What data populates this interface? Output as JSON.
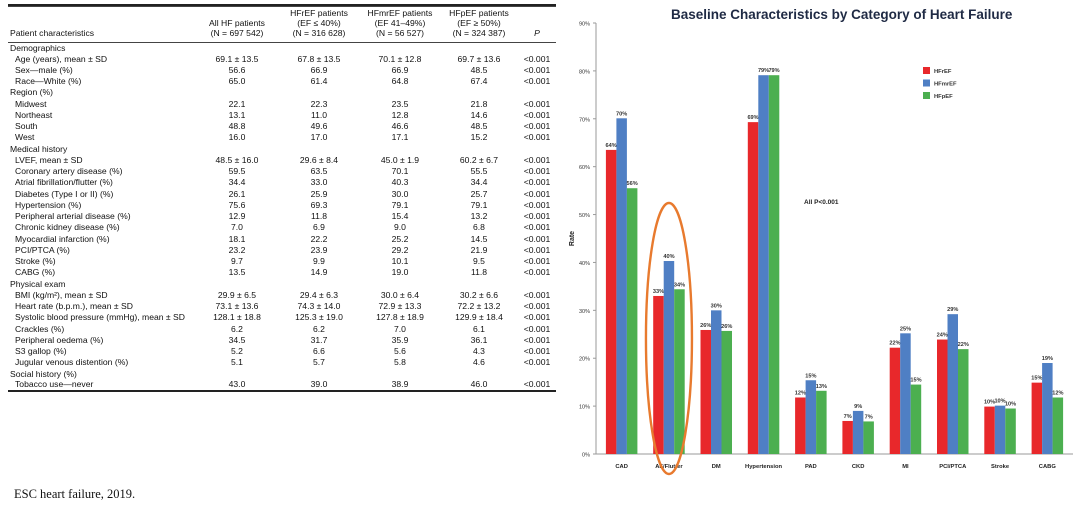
{
  "table": {
    "headers": [
      "Patient characteristics",
      "All HF patients\n(N = 697 542)",
      "HFrEF patients\n(EF ≤ 40%)\n(N = 316 628)",
      "HFmrEF patients\n(EF 41–49%)\n(N = 56 527)",
      "HFpEF patients\n(EF ≥ 50%)\n(N = 324 387)",
      "P"
    ],
    "rows": [
      {
        "type": "section",
        "label": "Demographics"
      },
      {
        "type": "row",
        "label": "Age (years), mean ± SD",
        "all": "69.1 ± 13.5",
        "hfref": "67.8 ± 13.5",
        "hfmref": "70.1 ± 12.8",
        "hfpef": "69.7 ± 13.6",
        "p": "<0.001"
      },
      {
        "type": "row",
        "label": "Sex—male (%)",
        "all": "56.6",
        "hfref": "66.9",
        "hfmref": "66.9",
        "hfpef": "48.5",
        "p": "<0.001"
      },
      {
        "type": "row",
        "label": "Race—White (%)",
        "all": "65.0",
        "hfref": "61.4",
        "hfmref": "64.8",
        "hfpef": "67.4",
        "p": "<0.001"
      },
      {
        "type": "section",
        "label": "Region (%)"
      },
      {
        "type": "row",
        "label": "Midwest",
        "all": "22.1",
        "hfref": "22.3",
        "hfmref": "23.5",
        "hfpef": "21.8",
        "p": "<0.001"
      },
      {
        "type": "row",
        "label": "Northeast",
        "all": "13.1",
        "hfref": "11.0",
        "hfmref": "12.8",
        "hfpef": "14.6",
        "p": "<0.001"
      },
      {
        "type": "row",
        "label": "South",
        "all": "48.8",
        "hfref": "49.6",
        "hfmref": "46.6",
        "hfpef": "48.5",
        "p": "<0.001"
      },
      {
        "type": "row",
        "label": "West",
        "all": "16.0",
        "hfref": "17.0",
        "hfmref": "17.1",
        "hfpef": "15.2",
        "p": "<0.001"
      },
      {
        "type": "section",
        "label": "Medical history"
      },
      {
        "type": "row",
        "label": "LVEF, mean ± SD",
        "all": "48.5 ± 16.0",
        "hfref": "29.6 ± 8.4",
        "hfmref": "45.0 ± 1.9",
        "hfpef": "60.2 ± 6.7",
        "p": "<0.001"
      },
      {
        "type": "row",
        "label": "Coronary artery disease (%)",
        "all": "59.5",
        "hfref": "63.5",
        "hfmref": "70.1",
        "hfpef": "55.5",
        "p": "<0.001"
      },
      {
        "type": "row",
        "label": "Atrial fibrillation/flutter (%)",
        "all": "34.4",
        "hfref": "33.0",
        "hfmref": "40.3",
        "hfpef": "34.4",
        "p": "<0.001"
      },
      {
        "type": "row",
        "label": "Diabetes (Type I or II) (%)",
        "all": "26.1",
        "hfref": "25.9",
        "hfmref": "30.0",
        "hfpef": "25.7",
        "p": "<0.001"
      },
      {
        "type": "row",
        "label": "Hypertension (%)",
        "all": "75.6",
        "hfref": "69.3",
        "hfmref": "79.1",
        "hfpef": "79.1",
        "p": "<0.001"
      },
      {
        "type": "row",
        "label": "Peripheral arterial disease (%)",
        "all": "12.9",
        "hfref": "11.8",
        "hfmref": "15.4",
        "hfpef": "13.2",
        "p": "<0.001"
      },
      {
        "type": "row",
        "label": "Chronic kidney disease (%)",
        "all": "7.0",
        "hfref": "6.9",
        "hfmref": "9.0",
        "hfpef": "6.8",
        "p": "<0.001"
      },
      {
        "type": "row",
        "label": "Myocardial infarction (%)",
        "all": "18.1",
        "hfref": "22.2",
        "hfmref": "25.2",
        "hfpef": "14.5",
        "p": "<0.001"
      },
      {
        "type": "row",
        "label": "PCI/PTCA (%)",
        "all": "23.2",
        "hfref": "23.9",
        "hfmref": "29.2",
        "hfpef": "21.9",
        "p": "<0.001"
      },
      {
        "type": "row",
        "label": "Stroke (%)",
        "all": "9.7",
        "hfref": "9.9",
        "hfmref": "10.1",
        "hfpef": "9.5",
        "p": "<0.001"
      },
      {
        "type": "row",
        "label": "CABG (%)",
        "all": "13.5",
        "hfref": "14.9",
        "hfmref": "19.0",
        "hfpef": "11.8",
        "p": "<0.001"
      },
      {
        "type": "section",
        "label": "Physical exam"
      },
      {
        "type": "row",
        "label": "BMI (kg/m²), mean ± SD",
        "all": "29.9 ± 6.5",
        "hfref": "29.4 ± 6.3",
        "hfmref": "30.0 ± 6.4",
        "hfpef": "30.2 ± 6.6",
        "p": "<0.001"
      },
      {
        "type": "row",
        "label": "Heart rate (b.p.m.), mean ± SD",
        "all": "73.1 ± 13.6",
        "hfref": "74.3 ± 14.0",
        "hfmref": "72.9 ± 13.3",
        "hfpef": "72.2 ± 13.2",
        "p": "<0.001"
      },
      {
        "type": "row",
        "label": "Systolic blood pressure (mmHg), mean ± SD",
        "all": "128.1 ± 18.8",
        "hfref": "125.3 ± 19.0",
        "hfmref": "127.8 ± 18.9",
        "hfpef": "129.9 ± 18.4",
        "p": "<0.001"
      },
      {
        "type": "row",
        "label": "Crackles (%)",
        "all": "6.2",
        "hfref": "6.2",
        "hfmref": "7.0",
        "hfpef": "6.1",
        "p": "<0.001"
      },
      {
        "type": "row",
        "label": "Peripheral oedema (%)",
        "all": "34.5",
        "hfref": "31.7",
        "hfmref": "35.9",
        "hfpef": "36.1",
        "p": "<0.001"
      },
      {
        "type": "row",
        "label": "S3 gallop (%)",
        "all": "5.2",
        "hfref": "6.6",
        "hfmref": "5.6",
        "hfpef": "4.3",
        "p": "<0.001"
      },
      {
        "type": "row",
        "label": "Jugular venous distention (%)",
        "all": "5.1",
        "hfref": "5.7",
        "hfmref": "5.8",
        "hfpef": "4.6",
        "p": "<0.001"
      },
      {
        "type": "section",
        "label": "Social history (%)"
      },
      {
        "type": "row",
        "label": "Tobacco use—never",
        "all": "43.0",
        "hfref": "39.0",
        "hfmref": "38.9",
        "hfpef": "46.0",
        "p": "<0.001"
      }
    ]
  },
  "caption": "ESC heart failure, 2019.",
  "chart_data": {
    "type": "bar",
    "title": "Baseline Characteristics by Category of Heart Failure",
    "xlabel": "",
    "ylabel": "Rate",
    "ylim": [
      0,
      90
    ],
    "yticks": [
      "0%",
      "10%",
      "20%",
      "30%",
      "40%",
      "50%",
      "60%",
      "70%",
      "80%",
      "90%"
    ],
    "categories": [
      "CAD",
      "AF/flutter",
      "DM",
      "Hypertension",
      "PAD",
      "CKD",
      "MI",
      "PCI/PTCA",
      "Stroke",
      "CABG"
    ],
    "category_labels": [
      "CAD",
      "AF/Flutter",
      "DM",
      "Hypertension",
      "PAD",
      "CKD",
      "MI",
      "PCI/PTCA",
      "Stroke",
      "CABG"
    ],
    "series": [
      {
        "name": "HFrEF",
        "color": "#e8282b",
        "values": [
          63.5,
          33.0,
          25.9,
          69.3,
          11.8,
          6.9,
          22.2,
          23.9,
          9.9,
          14.9
        ],
        "labels": [
          "64%",
          "33%",
          "26%",
          "69%",
          "12%",
          "7%",
          "22%",
          "24%",
          "10%",
          "15%"
        ]
      },
      {
        "name": "HFmrEF",
        "color": "#4f7fc4",
        "values": [
          70.1,
          40.3,
          30.0,
          79.1,
          15.4,
          9.0,
          25.2,
          29.2,
          10.1,
          19.0
        ],
        "labels": [
          "70%",
          "40%",
          "30%",
          "79%",
          "15%",
          "9%",
          "25%",
          "29%",
          "10%",
          "19%"
        ]
      },
      {
        "name": "HFpEF",
        "color": "#4caf50",
        "values": [
          55.5,
          34.4,
          25.7,
          79.1,
          13.2,
          6.8,
          14.5,
          21.9,
          9.5,
          11.8
        ],
        "labels": [
          "56%",
          "34%",
          "26%",
          "79%",
          "13%",
          "7%",
          "15%",
          "22%",
          "10%",
          "12%"
        ]
      }
    ],
    "annotation": "All P<0.001",
    "legend_position": "right",
    "highlight_category": "AF/flutter",
    "highlight_color": "#e87a2e",
    "grid": false
  }
}
